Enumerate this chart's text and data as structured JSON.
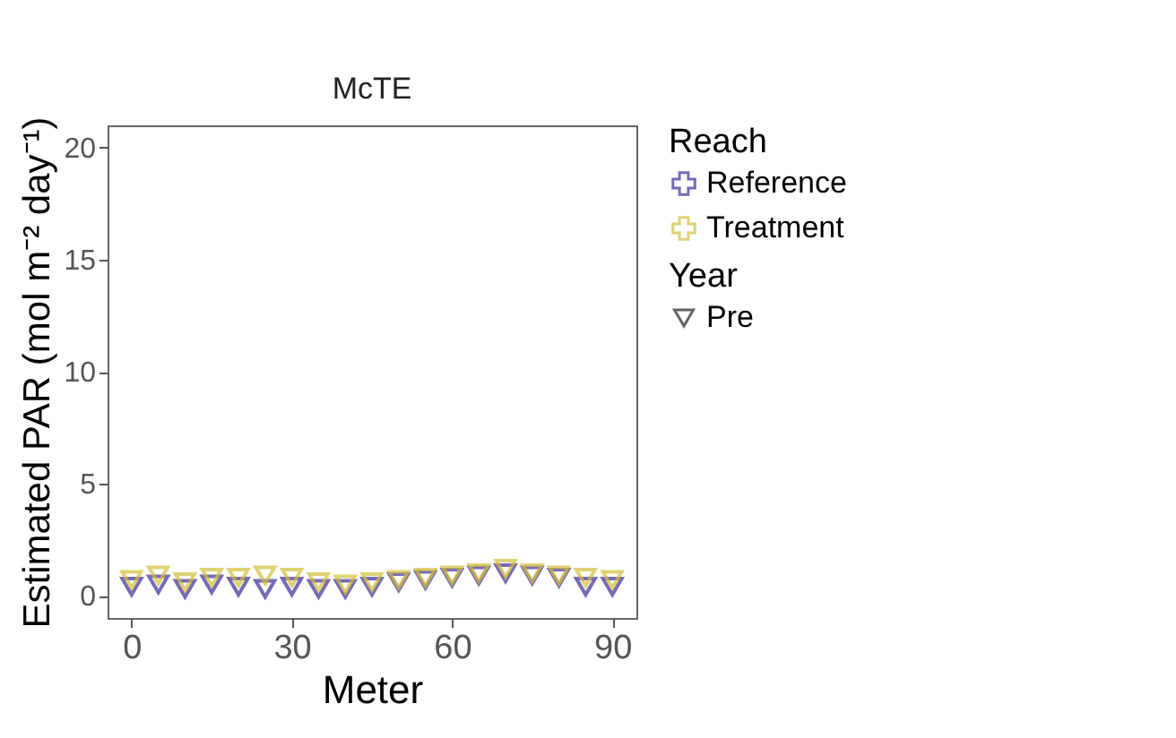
{
  "chart_data": {
    "type": "scatter",
    "title": "McTE",
    "xlabel": "Meter",
    "ylabel": "Estimated PAR (mol m⁻² day⁻¹)",
    "legend_title": "Reach",
    "annotations": [
      "Year",
      "Pre"
    ],
    "x": [
      0,
      5,
      10,
      15,
      20,
      25,
      30,
      35,
      40,
      45,
      50,
      55,
      60,
      65,
      70,
      75,
      80,
      85,
      90
    ],
    "series": [
      {
        "name": "Reference",
        "color": "#3d2b9a",
        "values": [
          0.4,
          0.5,
          0.3,
          0.5,
          0.4,
          0.3,
          0.4,
          0.3,
          0.3,
          0.4,
          0.6,
          0.7,
          0.8,
          0.9,
          1.0,
          0.9,
          0.8,
          0.4,
          0.4
        ]
      },
      {
        "name": "Treatment",
        "color": "#d1bf3a",
        "values": [
          0.7,
          0.9,
          0.6,
          0.8,
          0.8,
          0.9,
          0.8,
          0.6,
          0.5,
          0.6,
          0.7,
          0.8,
          0.9,
          1.0,
          1.2,
          1.0,
          0.9,
          0.8,
          0.7
        ]
      }
    ],
    "xlim": [
      -4.5,
      94.5
    ],
    "xticks": [
      0,
      30,
      60,
      90
    ],
    "ylim": [
      -1,
      21
    ],
    "yticks": [
      0,
      5,
      10,
      15,
      20
    ],
    "grid": false,
    "legend": "right",
    "marker": "triangle"
  }
}
